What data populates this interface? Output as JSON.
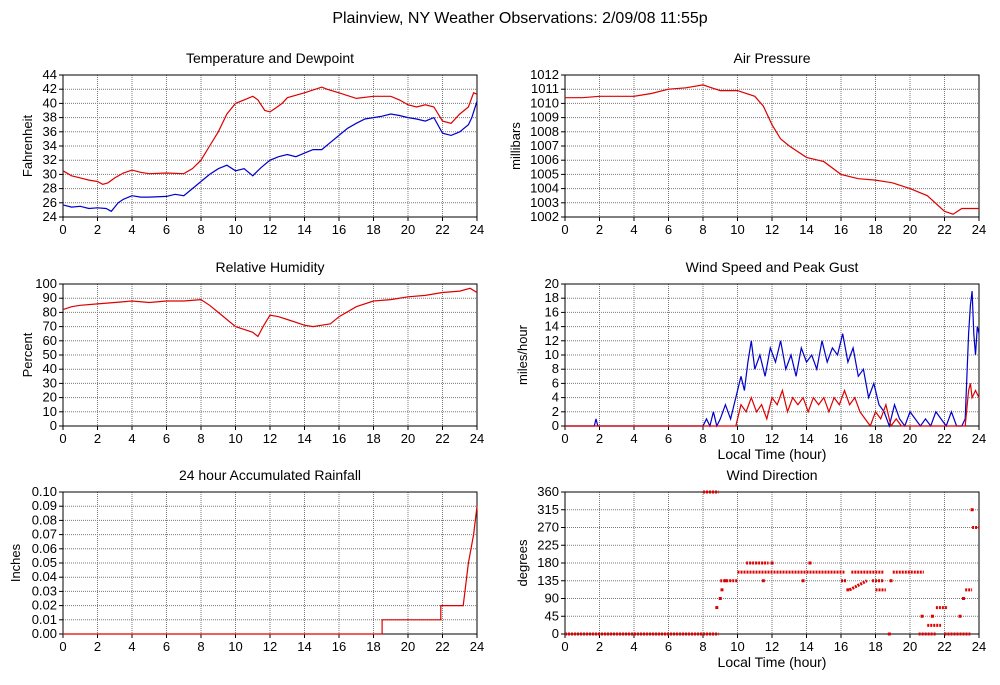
{
  "page_title": "Plainview, NY Weather Observations: 2/09/08 11:55p",
  "colors": {
    "red": "#dd0000",
    "blue": "#0000cc",
    "grid": "#7a7a7a"
  },
  "chart_data": [
    {
      "id": "temp",
      "type": "line",
      "title": "Temperature and Dewpoint",
      "xlabel": "",
      "ylabel": "Fahrenheit",
      "xlim": [
        0,
        24
      ],
      "ylim": [
        24,
        44
      ],
      "xticks": [
        0,
        2,
        4,
        6,
        8,
        10,
        12,
        14,
        16,
        18,
        20,
        22,
        24
      ],
      "yticks": [
        24,
        26,
        28,
        30,
        32,
        34,
        36,
        38,
        40,
        42,
        44
      ],
      "grid": true,
      "series": [
        {
          "color": "#dd0000",
          "style": "line",
          "x": [
            0,
            0.5,
            1,
            1.5,
            2,
            2.3,
            2.6,
            3,
            3.5,
            4,
            4.5,
            5,
            6,
            7,
            7.5,
            8,
            8.5,
            9,
            9.5,
            10,
            10.5,
            11,
            11.3,
            11.7,
            12,
            12.3,
            12.7,
            13,
            14,
            15,
            15.3,
            16,
            17,
            18,
            19,
            19.5,
            20,
            20.5,
            21,
            21.5,
            22,
            22.5,
            23,
            23.5,
            23.8,
            24
          ],
          "y": [
            30.5,
            29.8,
            29.5,
            29.2,
            29,
            28.6,
            28.8,
            29.5,
            30.2,
            30.6,
            30.3,
            30.1,
            30.2,
            30.1,
            30.8,
            32,
            34,
            36,
            38.5,
            40,
            40.5,
            41,
            40.5,
            39,
            38.8,
            39.3,
            40,
            40.8,
            41.5,
            42.3,
            42,
            41.5,
            40.7,
            41,
            41,
            40.5,
            39.8,
            39.5,
            39.8,
            39.5,
            37.5,
            37.2,
            38.5,
            39.5,
            41.5,
            41.3
          ]
        },
        {
          "color": "#0000cc",
          "style": "line",
          "x": [
            0,
            0.5,
            1,
            1.5,
            2,
            2.5,
            2.8,
            3.2,
            3.5,
            4,
            4.5,
            5,
            6,
            6.5,
            7,
            7.5,
            8,
            8.5,
            9,
            9.5,
            10,
            10.5,
            11,
            11.2,
            11.5,
            12,
            12.5,
            13,
            13.5,
            14,
            14.5,
            15,
            15.5,
            16,
            16.5,
            17,
            17.5,
            18,
            18.5,
            19,
            19.5,
            20,
            20.5,
            21,
            21.5,
            22,
            22.5,
            23,
            23.5,
            23.7,
            24
          ],
          "y": [
            25.7,
            25.4,
            25.5,
            25.2,
            25.3,
            25.2,
            24.8,
            26,
            26.5,
            27,
            26.8,
            26.8,
            26.9,
            27.2,
            27,
            28,
            29,
            30,
            30.8,
            31.3,
            30.5,
            30.8,
            29.8,
            30.3,
            31,
            32,
            32.5,
            32.8,
            32.5,
            33,
            33.5,
            33.5,
            34.5,
            35.5,
            36.5,
            37.2,
            37.8,
            38,
            38.2,
            38.5,
            38.3,
            38,
            37.8,
            37.5,
            38,
            35.8,
            35.5,
            36,
            37,
            38,
            40.3
          ]
        }
      ]
    },
    {
      "id": "pressure",
      "type": "line",
      "title": "Air Pressure",
      "xlabel": "",
      "ylabel": "millibars",
      "xlim": [
        0,
        24
      ],
      "ylim": [
        1002,
        1012
      ],
      "xticks": [
        0,
        2,
        4,
        6,
        8,
        10,
        12,
        14,
        16,
        18,
        20,
        22,
        24
      ],
      "yticks": [
        1002,
        1003,
        1004,
        1005,
        1006,
        1007,
        1008,
        1009,
        1010,
        1011,
        1012
      ],
      "grid": true,
      "series": [
        {
          "color": "#dd0000",
          "style": "line",
          "x": [
            0,
            1,
            2,
            3,
            4,
            5,
            6,
            7,
            8,
            8.5,
            9,
            10,
            11,
            11.5,
            12,
            12.5,
            13,
            14,
            15,
            16,
            17,
            18,
            19,
            20,
            21,
            22,
            22.5,
            23,
            24
          ],
          "y": [
            1010.4,
            1010.4,
            1010.5,
            1010.5,
            1010.5,
            1010.7,
            1011,
            1011.1,
            1011.3,
            1011.1,
            1010.9,
            1010.9,
            1010.5,
            1009.8,
            1008.5,
            1007.5,
            1007,
            1006.2,
            1005.9,
            1005,
            1004.7,
            1004.6,
            1004.4,
            1004,
            1003.5,
            1002.4,
            1002.2,
            1002.6,
            1002.6
          ]
        }
      ]
    },
    {
      "id": "humidity",
      "type": "line",
      "title": "Relative Humidity",
      "xlabel": "",
      "ylabel": "Percent",
      "xlim": [
        0,
        24
      ],
      "ylim": [
        0,
        100
      ],
      "xticks": [
        0,
        2,
        4,
        6,
        8,
        10,
        12,
        14,
        16,
        18,
        20,
        22,
        24
      ],
      "yticks": [
        0,
        10,
        20,
        30,
        40,
        50,
        60,
        70,
        80,
        90,
        100
      ],
      "grid": true,
      "series": [
        {
          "color": "#dd0000",
          "style": "line",
          "x": [
            0,
            0.5,
            1,
            2,
            3,
            4,
            5,
            6,
            7,
            8,
            8.5,
            9,
            9.5,
            10,
            10.5,
            11,
            11.3,
            11.6,
            12,
            12.5,
            13,
            14,
            14.5,
            15,
            15.5,
            16,
            17,
            18,
            19,
            20,
            21,
            22,
            23,
            23.6,
            24
          ],
          "y": [
            82,
            84,
            85,
            86,
            87,
            88,
            87,
            88,
            88,
            89,
            85,
            80,
            75,
            70,
            68,
            66,
            63,
            70,
            78,
            77,
            75,
            71,
            70,
            71,
            72,
            77,
            84,
            88,
            89,
            91,
            92,
            94,
            95,
            97,
            94
          ]
        }
      ]
    },
    {
      "id": "wind_speed",
      "type": "line",
      "title": "Wind Speed and Peak Gust",
      "xlabel": "Local Time (hour)",
      "ylabel": "miles/hour",
      "xlim": [
        0,
        24
      ],
      "ylim": [
        0,
        20
      ],
      "xticks": [
        0,
        2,
        4,
        6,
        8,
        10,
        12,
        14,
        16,
        18,
        20,
        22,
        24
      ],
      "yticks": [
        0,
        2,
        4,
        6,
        8,
        10,
        12,
        14,
        16,
        18,
        20
      ],
      "grid": true,
      "series": [
        {
          "color": "#0000cc",
          "style": "line",
          "x": [
            0,
            1.7,
            1.8,
            1.9,
            8,
            8.2,
            8.4,
            8.6,
            8.8,
            9,
            9.3,
            9.6,
            9.9,
            10.2,
            10.4,
            10.6,
            10.8,
            11,
            11.3,
            11.6,
            11.9,
            12.2,
            12.5,
            12.8,
            13.1,
            13.4,
            13.7,
            14,
            14.3,
            14.6,
            14.9,
            15.2,
            15.5,
            15.8,
            16.1,
            16.4,
            16.7,
            17,
            17.3,
            17.6,
            17.9,
            18.2,
            18.5,
            18.8,
            19.1,
            19.4,
            19.7,
            20,
            20.3,
            20.6,
            20.9,
            21.2,
            21.5,
            21.8,
            22.1,
            22.4,
            22.7,
            23,
            23.2,
            23.4,
            23.5,
            23.6,
            23.7,
            23.8,
            23.9,
            24
          ],
          "y": [
            0,
            0,
            1,
            0,
            0,
            1,
            0,
            2,
            0,
            1,
            3,
            1,
            4,
            7,
            5,
            9,
            12,
            8,
            10,
            7,
            11,
            9,
            12,
            8,
            10,
            7,
            11,
            9,
            10,
            8,
            12,
            9,
            11,
            10,
            13,
            9,
            11,
            7,
            8,
            4,
            6,
            3,
            2,
            0,
            3,
            1,
            0,
            2,
            1,
            0,
            1,
            0,
            2,
            1,
            0,
            2,
            0,
            0,
            1,
            13,
            17,
            19,
            13,
            10,
            14,
            13
          ]
        },
        {
          "color": "#dd0000",
          "style": "line",
          "x": [
            0,
            9.9,
            10.2,
            10.5,
            10.8,
            11.1,
            11.4,
            11.7,
            12,
            12.3,
            12.6,
            12.9,
            13.2,
            13.5,
            13.8,
            14.1,
            14.4,
            14.7,
            15,
            15.3,
            15.6,
            15.9,
            16.2,
            16.5,
            16.8,
            17.1,
            17.4,
            17.7,
            18,
            18.3,
            18.6,
            18.9,
            19.2,
            19.5,
            22,
            23.2,
            23.4,
            23.5,
            23.6,
            23.8,
            24
          ],
          "y": [
            0,
            0,
            3,
            2,
            4,
            2,
            3,
            1,
            4,
            3,
            5,
            2,
            4,
            3,
            4,
            2,
            4,
            3,
            4,
            2,
            4,
            3,
            5,
            3,
            4,
            2,
            1,
            0,
            2,
            1,
            3,
            0,
            1,
            0,
            0,
            0,
            5,
            6,
            4,
            5,
            4
          ]
        }
      ]
    },
    {
      "id": "rain",
      "type": "line",
      "title": "24 hour Accumulated Rainfall",
      "xlabel": "",
      "ylabel": "Inches",
      "xlim": [
        0,
        24
      ],
      "ylim": [
        0,
        0.1
      ],
      "xticks": [
        0,
        2,
        4,
        6,
        8,
        10,
        12,
        14,
        16,
        18,
        20,
        22,
        24
      ],
      "yticks": [
        "0.00",
        "0.01",
        "0.02",
        "0.03",
        "0.04",
        "0.05",
        "0.06",
        "0.07",
        "0.08",
        "0.09",
        "0.10"
      ],
      "grid": true,
      "series": [
        {
          "color": "#dd0000",
          "style": "line",
          "x": [
            0,
            18.5,
            18.5,
            21.9,
            21.9,
            23.2,
            23.5,
            23.8,
            24
          ],
          "y": [
            0,
            0,
            0.01,
            0.01,
            0.02,
            0.02,
            0.05,
            0.07,
            0.09
          ]
        }
      ]
    },
    {
      "id": "wind_dir",
      "type": "scatter",
      "title": "Wind Direction",
      "xlabel": "Local Time (hour)",
      "ylabel": "degrees",
      "xlim": [
        0,
        24
      ],
      "ylim": [
        0,
        360
      ],
      "xticks": [
        0,
        2,
        4,
        6,
        8,
        10,
        12,
        14,
        16,
        18,
        20,
        22,
        24
      ],
      "yticks": [
        0,
        45,
        90,
        135,
        180,
        225,
        270,
        315,
        360
      ],
      "grid": true,
      "series": [
        {
          "color": "#dd0000",
          "style": "segments",
          "segments": [
            [
              0,
              0,
              8.9,
              0
            ],
            [
              8,
              360,
              8.9,
              360
            ],
            [
              9,
              135,
              10,
              135
            ],
            [
              10,
              157,
              16.2,
              157
            ],
            [
              10.5,
              180,
              11.8,
              180
            ],
            [
              16,
              135,
              16.3,
              135
            ],
            [
              16.6,
              157,
              18.5,
              157
            ],
            [
              16.5,
              112,
              17.5,
              135
            ],
            [
              17.8,
              135,
              18.5,
              135
            ],
            [
              18,
              112,
              18.6,
              112
            ],
            [
              19,
              157,
              20.8,
              157
            ],
            [
              20.5,
              0,
              21.5,
              0
            ],
            [
              21,
              22,
              21.8,
              22
            ],
            [
              21.5,
              67,
              22.2,
              67
            ],
            [
              22,
              0,
              23.5,
              0
            ],
            [
              23.2,
              112,
              23.6,
              112
            ],
            [
              23.6,
              270,
              24,
              270
            ]
          ],
          "points": [
            [
              8.8,
              67
            ],
            [
              9,
              90
            ],
            [
              9.1,
              112
            ],
            [
              9.3,
              135
            ],
            [
              11.5,
              135
            ],
            [
              12,
              180
            ],
            [
              13.8,
              135
            ],
            [
              14.2,
              180
            ],
            [
              16.4,
              112
            ],
            [
              18.8,
              0
            ],
            [
              18.9,
              135
            ],
            [
              20.7,
              45
            ],
            [
              21.3,
              45
            ],
            [
              22.9,
              45
            ],
            [
              23.1,
              90
            ],
            [
              23.6,
              315
            ]
          ]
        }
      ]
    }
  ]
}
